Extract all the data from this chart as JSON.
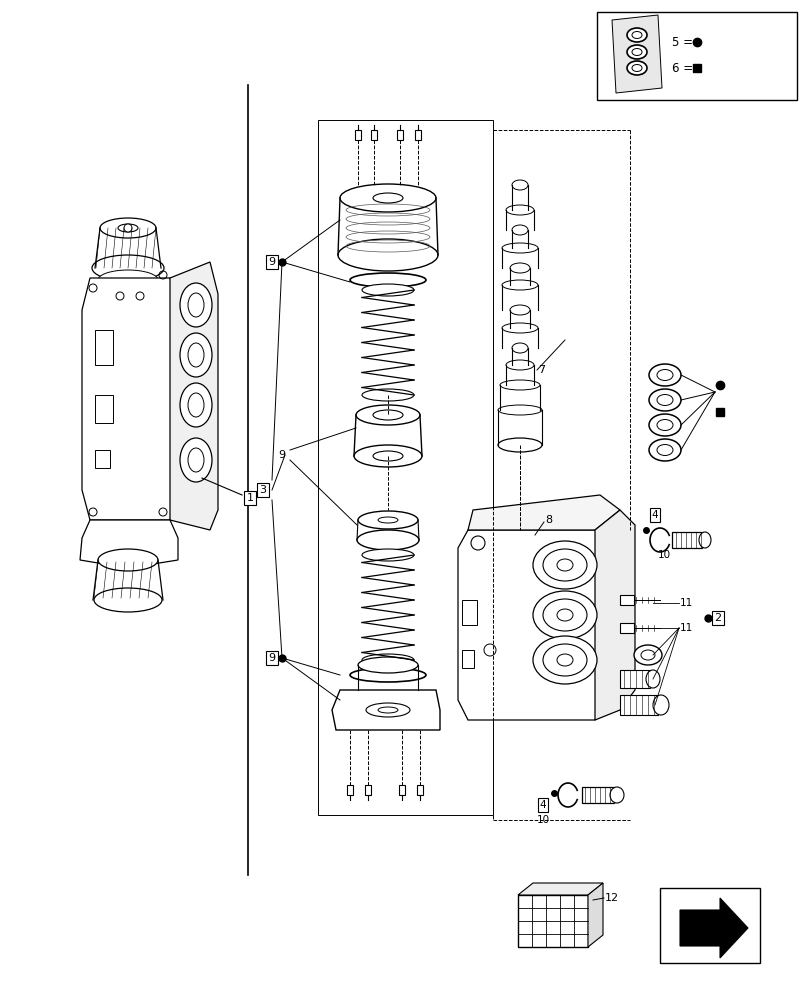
{
  "background_color": "#ffffff",
  "line_color": "#000000"
}
